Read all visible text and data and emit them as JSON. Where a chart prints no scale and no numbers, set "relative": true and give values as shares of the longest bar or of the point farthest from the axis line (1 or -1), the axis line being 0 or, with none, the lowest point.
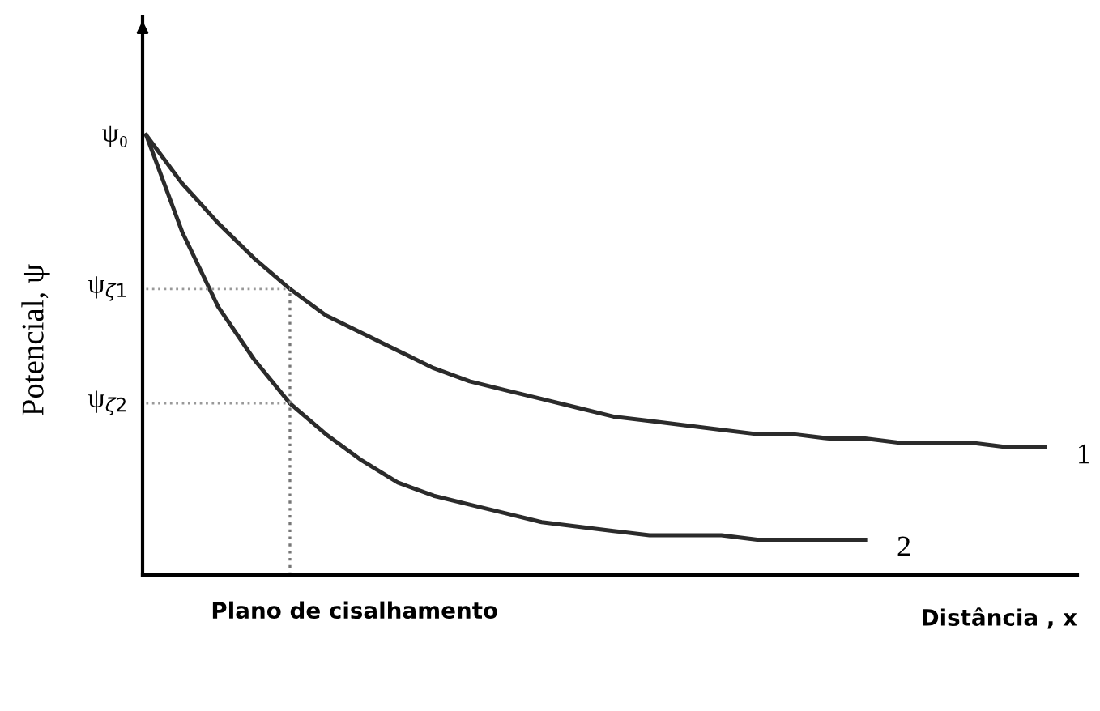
{
  "chart_data": {
    "type": "line",
    "relative": true,
    "xlabel": "Distância , x",
    "ylabel": "Potencial, ψ",
    "categories": [
      null,
      null,
      null,
      null,
      null,
      null,
      null,
      null,
      null,
      null,
      null,
      null,
      null,
      null,
      null,
      null,
      null,
      null,
      null,
      null,
      null,
      null,
      null,
      null,
      null,
      null
    ],
    "series": [
      {
        "name": "1",
        "color": "#2b2b2b",
        "values": [
          1,
          0.89,
          0.8,
          0.72,
          0.65,
          0.59,
          0.55,
          0.51,
          0.47,
          0.44,
          0.42,
          0.4,
          0.38,
          0.36,
          0.35,
          0.34,
          0.33,
          0.32,
          0.32,
          0.31,
          0.31,
          0.3,
          0.3,
          0.3,
          0.29,
          0.29
        ]
      },
      {
        "name": "2",
        "color": "#2b2b2b",
        "values": [
          1,
          0.78,
          0.61,
          0.49,
          0.39,
          0.32,
          0.26,
          0.21,
          0.18,
          0.16,
          0.14,
          0.12,
          0.11,
          0.1,
          0.09,
          0.09,
          0.09,
          0.08,
          0.08,
          0.08,
          0.08,
          null,
          null,
          null,
          null,
          null
        ]
      }
    ],
    "ref_lines": [
      {
        "axis": "y",
        "value": 0.65,
        "label": "ψ$_{ζ1}$",
        "line_style": "dotted",
        "color": "#999999"
      },
      {
        "axis": "y",
        "value": 0.39,
        "label": "ψ$_{ζ2}$",
        "line_style": "dotted",
        "color": "#999999"
      }
    ],
    "annotations": [
      "ψ₀",
      "Plano de cisalhamento"
    ],
    "line_style": "solid",
    "marker": "none",
    "grid": false,
    "legend": false
  }
}
